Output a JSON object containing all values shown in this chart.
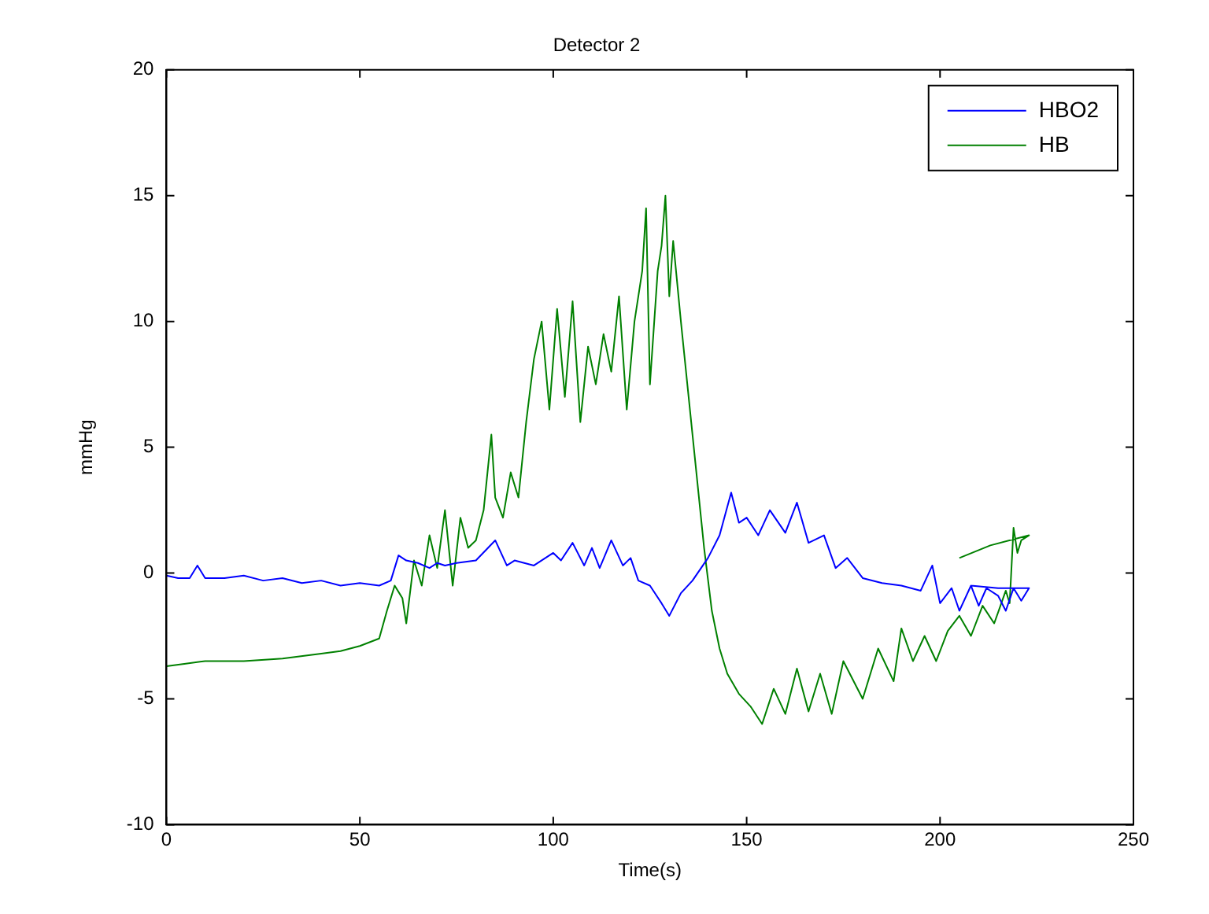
{
  "chart_data": {
    "type": "line",
    "title": "Detector 2",
    "xlabel": "Time(s)",
    "ylabel": "mmHg",
    "xlim": [
      0,
      250
    ],
    "ylim": [
      -10,
      20
    ],
    "xticks": [
      0,
      50,
      100,
      150,
      200,
      250
    ],
    "yticks": [
      -10,
      -5,
      0,
      5,
      10,
      15,
      20
    ],
    "grid": false,
    "legend": "top right",
    "marker": "none",
    "line_style": "solid",
    "series": [
      {
        "name": "HBO2",
        "color": "#0000ff",
        "x": [
          0,
          3,
          6,
          8,
          10,
          15,
          20,
          25,
          30,
          35,
          40,
          45,
          50,
          55,
          58,
          60,
          62,
          65,
          68,
          70,
          72,
          75,
          80,
          85,
          88,
          90,
          95,
          100,
          102,
          105,
          108,
          110,
          112,
          115,
          118,
          120,
          122,
          125,
          128,
          130,
          133,
          136,
          140,
          143,
          146,
          148,
          150,
          153,
          156,
          160,
          163,
          166,
          170,
          173,
          176,
          180,
          185,
          190,
          195,
          198,
          200,
          203,
          205,
          208,
          210,
          212,
          215,
          217,
          219,
          221,
          223,
          215,
          208
        ],
        "values": [
          -0.1,
          -0.2,
          -0.2,
          0.3,
          -0.2,
          -0.2,
          -0.1,
          -0.3,
          -0.2,
          -0.4,
          -0.3,
          -0.5,
          -0.4,
          -0.5,
          -0.3,
          0.7,
          0.5,
          0.4,
          0.2,
          0.4,
          0.3,
          0.4,
          0.5,
          1.3,
          0.3,
          0.5,
          0.3,
          0.8,
          0.5,
          1.2,
          0.3,
          1,
          0.2,
          1.3,
          0.3,
          0.6,
          -0.3,
          -0.5,
          -1.2,
          -1.7,
          -0.8,
          -0.3,
          0.6,
          1.5,
          3.2,
          2,
          2.2,
          1.5,
          2.5,
          1.6,
          2.8,
          1.2,
          1.5,
          0.2,
          0.6,
          -0.2,
          -0.4,
          -0.5,
          -0.7,
          0.3,
          -1.2,
          -0.6,
          -1.5,
          -0.5,
          -1.3,
          -0.6,
          -0.9,
          -1.5,
          -0.6,
          -1.1,
          -0.6,
          -0.6,
          -0.5
        ]
      },
      {
        "name": "HB",
        "color": "#008000",
        "x": [
          0,
          5,
          10,
          20,
          30,
          40,
          45,
          50,
          55,
          57,
          59,
          61,
          62,
          64,
          66,
          68,
          70,
          72,
          74,
          76,
          78,
          80,
          82,
          84,
          85,
          87,
          89,
          91,
          93,
          95,
          97,
          99,
          101,
          103,
          105,
          107,
          109,
          111,
          113,
          115,
          117,
          119,
          121,
          123,
          124,
          125,
          127,
          128,
          129,
          130,
          131,
          133,
          135,
          137,
          139,
          141,
          143,
          145,
          148,
          151,
          154,
          157,
          160,
          163,
          166,
          169,
          172,
          175,
          180,
          184,
          188,
          190,
          193,
          196,
          199,
          202,
          205,
          208,
          211,
          214,
          217,
          218,
          219,
          220,
          221,
          223,
          213,
          205
        ],
        "values": [
          -3.7,
          -3.6,
          -3.5,
          -3.5,
          -3.4,
          -3.2,
          -3.1,
          -2.9,
          -2.6,
          -1.5,
          -0.5,
          -1,
          -2,
          0.5,
          -0.5,
          1.5,
          0.2,
          2.5,
          -0.5,
          2.2,
          1,
          1.3,
          2.5,
          5.5,
          3,
          2.2,
          4,
          3,
          6,
          8.5,
          10,
          6.5,
          10.5,
          7,
          10.8,
          6,
          9,
          7.5,
          9.5,
          8,
          11,
          6.5,
          10,
          12,
          14.5,
          7.5,
          12,
          13,
          15,
          11,
          13.2,
          10,
          7,
          4,
          1,
          -1.5,
          -3,
          -4,
          -4.8,
          -5.3,
          -6,
          -4.6,
          -5.6,
          -3.8,
          -5.5,
          -4,
          -5.6,
          -3.5,
          -5,
          -3,
          -4.3,
          -2.2,
          -3.5,
          -2.5,
          -3.5,
          -2.3,
          -1.7,
          -2.5,
          -1.3,
          -2,
          -0.7,
          -1.2,
          1.8,
          0.8,
          1.3,
          1.5,
          1.1,
          0.6
        ]
      }
    ]
  }
}
